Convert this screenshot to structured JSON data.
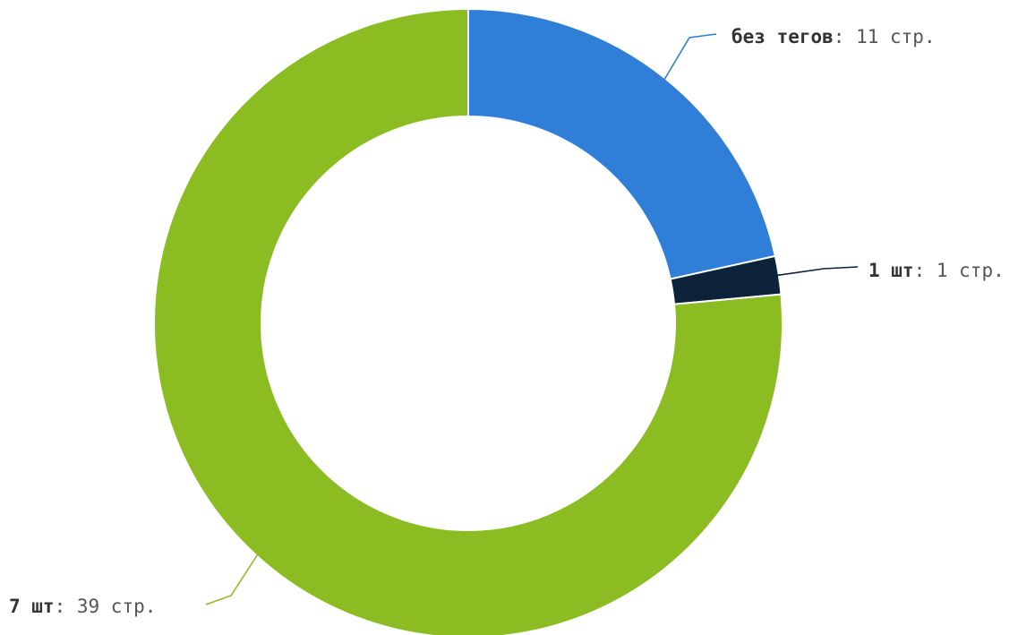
{
  "chart_data": {
    "type": "pie",
    "donut": true,
    "legend": "none",
    "unit_suffix": " стр.",
    "slices": [
      {
        "name": "без тегов",
        "value": 11,
        "color": "#2f7ed8",
        "label_value": "11 стр."
      },
      {
        "name": "1 шт",
        "value": 1,
        "color": "#0d233a",
        "label_value": "1 стр."
      },
      {
        "name": "7 шт",
        "value": 39,
        "color": "#8bbc21",
        "label_value": "39 стр."
      }
    ]
  }
}
